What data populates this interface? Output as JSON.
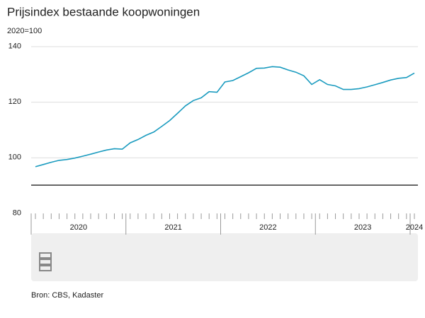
{
  "chart_data": {
    "type": "line",
    "title": "Prijsindex bestaande koopwoningen",
    "subtitle": "2020=100",
    "source": "Bron: CBS, Kadaster",
    "categories": [
      "2020",
      null,
      null,
      null,
      null,
      null,
      null,
      null,
      null,
      null,
      null,
      null,
      "2021",
      null,
      null,
      null,
      null,
      null,
      null,
      null,
      null,
      null,
      null,
      null,
      "2022",
      null,
      null,
      null,
      null,
      null,
      null,
      null,
      null,
      null,
      null,
      null,
      "2023",
      null,
      null,
      null,
      null,
      null,
      null,
      null,
      null,
      null,
      null,
      null,
      "2024"
    ],
    "series": [
      {
        "name": "Prijsindex",
        "color": "#1a9bbf",
        "values": [
          96.8,
          97.6,
          98.4,
          99.1,
          99.4,
          99.9,
          100.6,
          101.3,
          102.1,
          102.8,
          103.3,
          103.1,
          105.4,
          106.6,
          108.1,
          109.3,
          111.3,
          113.4,
          116.0,
          118.7,
          120.6,
          121.6,
          123.8,
          123.6,
          127.3,
          127.8,
          129.2,
          130.6,
          132.2,
          132.3,
          132.8,
          132.6,
          131.6,
          130.8,
          129.5,
          126.4,
          128.1,
          126.4,
          125.9,
          124.6,
          124.6,
          124.9,
          125.5,
          126.3,
          127.1,
          128.0,
          128.6,
          128.9,
          130.5
        ]
      }
    ],
    "ylim": [
      80,
      140
    ],
    "yticks": [
      80,
      100,
      120,
      140
    ],
    "grid": true
  }
}
